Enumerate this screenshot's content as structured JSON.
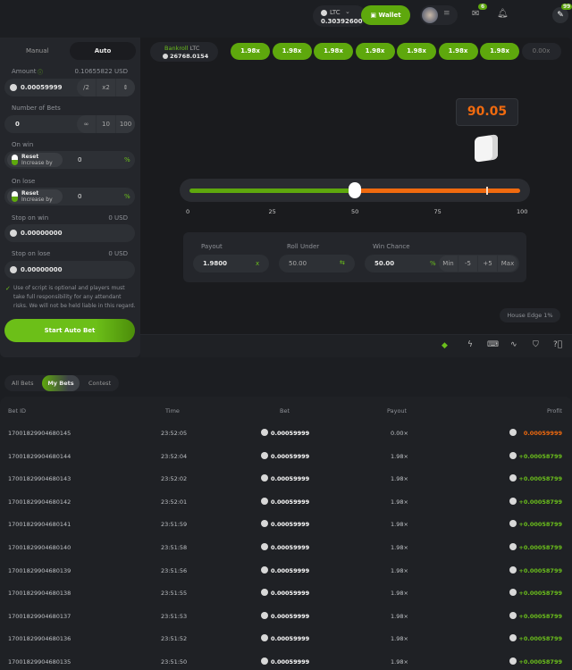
{
  "header": {
    "currency": "LTC",
    "balance": "0.30392600",
    "wallet_label": "Wallet",
    "mail_badge": "6",
    "chat_badge": "99"
  },
  "sidebar": {
    "tabs": [
      "Manual",
      "Auto"
    ],
    "active_tab": "Auto",
    "amount_label": "Amount",
    "amount_usd": "0.10655822 USD",
    "amount_value": "0.00059999",
    "half": "/2",
    "double": "x2",
    "bets_label": "Number of Bets",
    "bets_value": "0",
    "bets_options": [
      "∞",
      "10",
      "100"
    ],
    "on_win_label": "On win",
    "on_lose_label": "On lose",
    "reset": "Reset",
    "increase": "Increase by",
    "win_value": "0",
    "lose_value": "0",
    "pct": "%",
    "stop_win_label": "Stop on win",
    "stop_win_usd": "0 USD",
    "stop_win_value": "0.00000000",
    "stop_lose_label": "Stop on lose",
    "stop_lose_usd": "0 USD",
    "stop_lose_value": "0.00000000",
    "disclaimer": "Use of script is optional and players must take full responsibility for any attendant risks. We will not be held liable in this regard.",
    "start_label": "Start Auto Bet"
  },
  "game": {
    "bankroll_label": "Bankroll",
    "bankroll_currency": "LTC",
    "bankroll_value": "26768.0154",
    "history": [
      "1.98x",
      "1.98x",
      "1.98x",
      "1.98x",
      "1.98x",
      "1.98x",
      "1.98x",
      "0.00x"
    ],
    "result": "90.05",
    "roll_under": 50,
    "result_value": 90.05,
    "scale": [
      "0",
      "25",
      "50",
      "75",
      "100"
    ],
    "payout_label": "Payout",
    "payout_value": "1.9800",
    "payout_suffix": "x",
    "roll_label": "Roll Under",
    "roll_value": "50.00",
    "chance_label": "Win Chance",
    "chance_value": "50.00",
    "chance_suffix": "%",
    "chance_buttons": [
      "Min",
      "-5",
      "+5",
      "Max"
    ],
    "house_edge": "House Edge 1%",
    "toolbar_icons": [
      "live-stats-icon",
      "lightning-icon",
      "keyboard-icon",
      "chart-icon",
      "fairness-icon",
      "help-icon"
    ]
  },
  "bets": {
    "tabs": [
      "All Bets",
      "My Bets",
      "Contest"
    ],
    "active_tab": "My Bets",
    "columns": [
      "Bet ID",
      "Time",
      "Bet",
      "Payout",
      "Profit"
    ],
    "rows": [
      [
        "17001829904680145",
        "23:52:05",
        "0.00059999",
        "0.00×",
        "0.00059999",
        "loss"
      ],
      [
        "17001829904680144",
        "23:52:04",
        "0.00059999",
        "1.98×",
        "+0.00058799",
        "win"
      ],
      [
        "17001829904680143",
        "23:52:02",
        "0.00059999",
        "1.98×",
        "+0.00058799",
        "win"
      ],
      [
        "17001829904680142",
        "23:52:01",
        "0.00059999",
        "1.98×",
        "+0.00058799",
        "win"
      ],
      [
        "17001829904680141",
        "23:51:59",
        "0.00059999",
        "1.98×",
        "+0.00058799",
        "win"
      ],
      [
        "17001829904680140",
        "23:51:58",
        "0.00059999",
        "1.98×",
        "+0.00058799",
        "win"
      ],
      [
        "17001829904680139",
        "23:51:56",
        "0.00059999",
        "1.98×",
        "+0.00058799",
        "win"
      ],
      [
        "17001829904680138",
        "23:51:55",
        "0.00059999",
        "1.98×",
        "+0.00058799",
        "win"
      ],
      [
        "17001829904680137",
        "23:51:53",
        "0.00059999",
        "1.98×",
        "+0.00058799",
        "win"
      ],
      [
        "17001829904680136",
        "23:51:52",
        "0.00059999",
        "1.98×",
        "+0.00058799",
        "win"
      ],
      [
        "17001829904680135",
        "23:51:50",
        "0.00059999",
        "1.98×",
        "+0.00058799",
        "win"
      ]
    ]
  },
  "colors": {
    "accent": "#5ea80d",
    "win": "#6bbf1c",
    "loss": "#f06a0f"
  }
}
